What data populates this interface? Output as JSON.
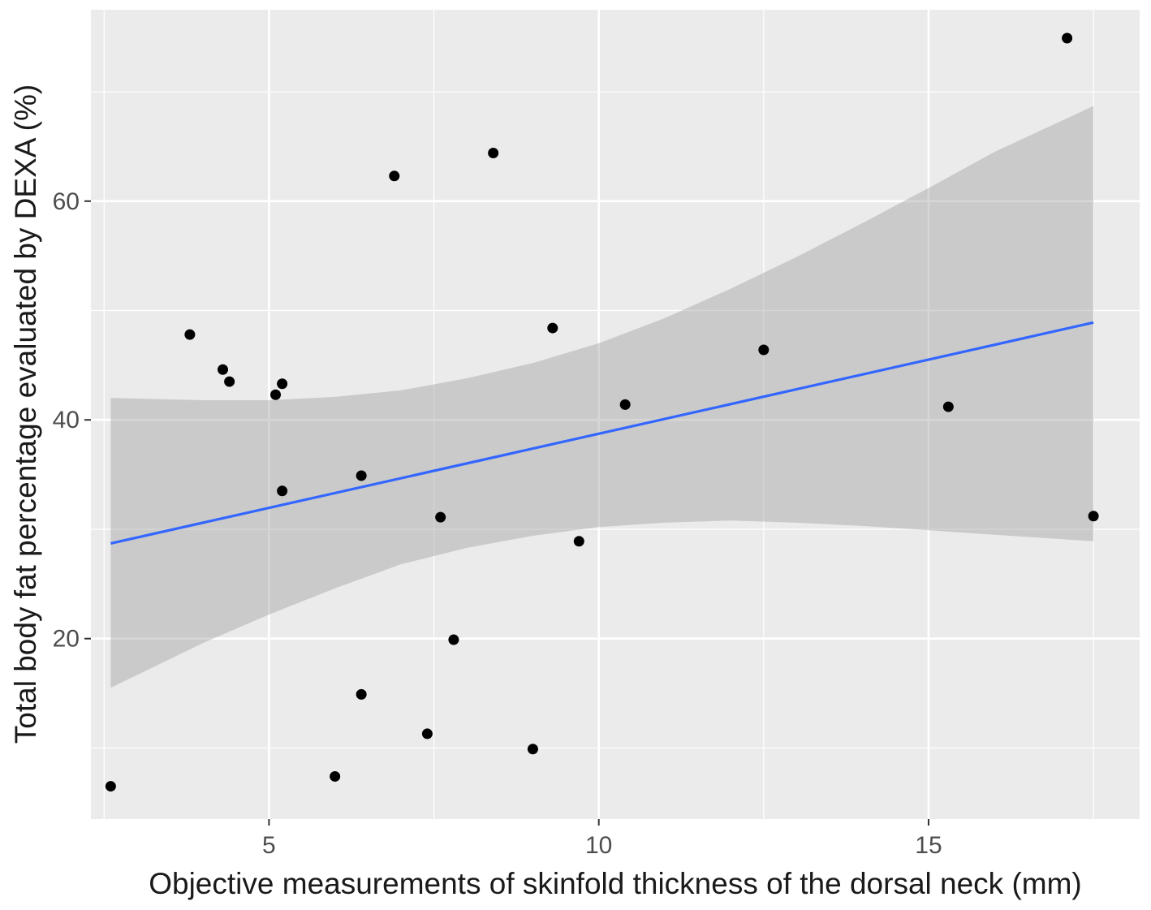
{
  "chart_data": {
    "type": "scatter",
    "title": "",
    "xlabel": "Objective measurements of skinfold thickness of the dorsal neck (mm)",
    "ylabel": "Total body fat percentage evaluated by DEXA (%)",
    "xlim": [
      2.3,
      18.2
    ],
    "ylim": [
      3.5,
      77.5
    ],
    "x_ticks": [
      5,
      10,
      15
    ],
    "y_ticks": [
      20,
      40,
      60
    ],
    "x_tick_labels": [
      "5",
      "10",
      "15"
    ],
    "y_tick_labels": [
      "20",
      "40",
      "60"
    ],
    "grid": true,
    "points": [
      {
        "x": 2.6,
        "y": 6.5
      },
      {
        "x": 3.8,
        "y": 47.8
      },
      {
        "x": 4.3,
        "y": 44.6
      },
      {
        "x": 4.4,
        "y": 43.5
      },
      {
        "x": 5.1,
        "y": 42.3
      },
      {
        "x": 5.2,
        "y": 43.3
      },
      {
        "x": 5.2,
        "y": 33.5
      },
      {
        "x": 6.0,
        "y": 7.4
      },
      {
        "x": 6.4,
        "y": 34.9
      },
      {
        "x": 6.4,
        "y": 14.9
      },
      {
        "x": 6.9,
        "y": 62.3
      },
      {
        "x": 7.4,
        "y": 11.3
      },
      {
        "x": 7.6,
        "y": 31.1
      },
      {
        "x": 7.8,
        "y": 19.9
      },
      {
        "x": 8.4,
        "y": 64.4
      },
      {
        "x": 9.0,
        "y": 9.9
      },
      {
        "x": 9.3,
        "y": 48.4
      },
      {
        "x": 9.7,
        "y": 28.9
      },
      {
        "x": 10.4,
        "y": 41.4
      },
      {
        "x": 12.5,
        "y": 46.4
      },
      {
        "x": 15.3,
        "y": 41.2
      },
      {
        "x": 17.1,
        "y": 74.9
      },
      {
        "x": 17.5,
        "y": 31.2
      }
    ],
    "fit_line": {
      "x": [
        2.6,
        17.5
      ],
      "y": [
        28.7,
        48.9
      ],
      "color": "#3366ff"
    },
    "confidence_band": {
      "x": [
        2.6,
        4.0,
        5.0,
        6.0,
        7.0,
        8.0,
        9.0,
        10.0,
        11.0,
        12.0,
        13.0,
        14.0,
        15.0,
        16.0,
        17.5
      ],
      "upper": [
        42.0,
        41.8,
        41.8,
        42.1,
        42.7,
        43.8,
        45.2,
        47.0,
        49.3,
        52.0,
        54.9,
        58.0,
        61.2,
        64.5,
        68.7
      ],
      "lower": [
        15.5,
        19.6,
        22.2,
        24.6,
        26.8,
        28.3,
        29.4,
        30.2,
        30.6,
        30.8,
        30.6,
        30.3,
        29.9,
        29.5,
        28.9
      ],
      "color": "#999999"
    },
    "colors": {
      "panel": "#ebebeb",
      "grid": "#ffffff",
      "points": "#000000"
    }
  }
}
